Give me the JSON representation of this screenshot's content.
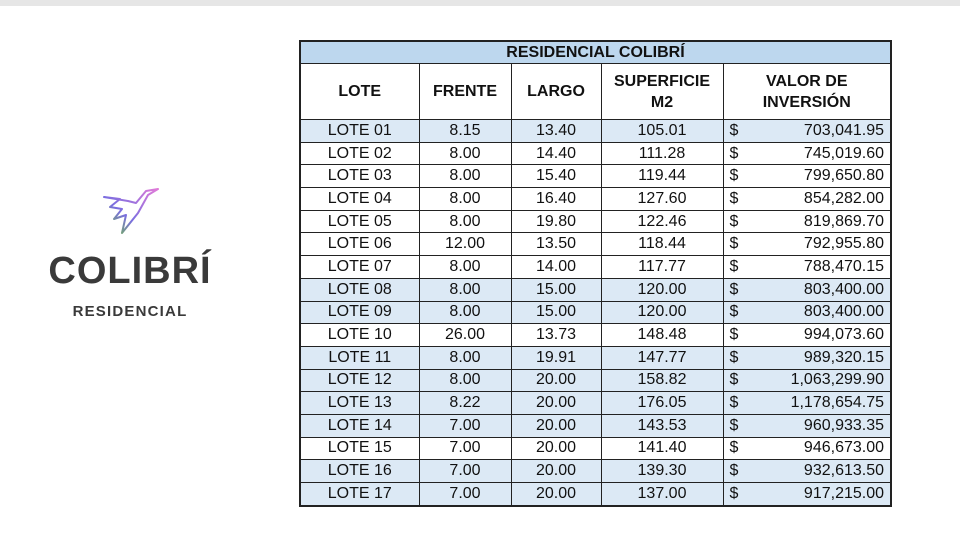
{
  "logo": {
    "brand": "COLIBRÍ",
    "subtitle": "RESIDENCIAL",
    "icon": "hummingbird-icon"
  },
  "table": {
    "title": "RESIDENCIAL COLIBRÍ",
    "headers": [
      "LOTE",
      "FRENTE",
      "LARGO",
      "SUPERFICIE M2",
      "VALOR DE INVERSIÓN"
    ],
    "currency": "$",
    "highlight_color": "#dce9f5",
    "title_color": "#bdd7ee",
    "rows": [
      {
        "lote": "LOTE 01",
        "frente": "8.15",
        "largo": "13.40",
        "superficie": "105.01",
        "valor": "703,041.95",
        "highlight": true
      },
      {
        "lote": "LOTE 02",
        "frente": "8.00",
        "largo": "14.40",
        "superficie": "111.28",
        "valor": "745,019.60",
        "highlight": false
      },
      {
        "lote": "LOTE 03",
        "frente": "8.00",
        "largo": "15.40",
        "superficie": "119.44",
        "valor": "799,650.80",
        "highlight": false
      },
      {
        "lote": "LOTE 04",
        "frente": "8.00",
        "largo": "16.40",
        "superficie": "127.60",
        "valor": "854,282.00",
        "highlight": false
      },
      {
        "lote": "LOTE 05",
        "frente": "8.00",
        "largo": "19.80",
        "superficie": "122.46",
        "valor": "819,869.70",
        "highlight": false
      },
      {
        "lote": "LOTE 06",
        "frente": "12.00",
        "largo": "13.50",
        "superficie": "118.44",
        "valor": "792,955.80",
        "highlight": false
      },
      {
        "lote": "LOTE 07",
        "frente": "8.00",
        "largo": "14.00",
        "superficie": "117.77",
        "valor": "788,470.15",
        "highlight": false
      },
      {
        "lote": "LOTE 08",
        "frente": "8.00",
        "largo": "15.00",
        "superficie": "120.00",
        "valor": "803,400.00",
        "highlight": true
      },
      {
        "lote": "LOTE 09",
        "frente": "8.00",
        "largo": "15.00",
        "superficie": "120.00",
        "valor": "803,400.00",
        "highlight": true
      },
      {
        "lote": "LOTE 10",
        "frente": "26.00",
        "largo": "13.73",
        "superficie": "148.48",
        "valor": "994,073.60",
        "highlight": false
      },
      {
        "lote": "LOTE 11",
        "frente": "8.00",
        "largo": "19.91",
        "superficie": "147.77",
        "valor": "989,320.15",
        "highlight": true
      },
      {
        "lote": "LOTE 12",
        "frente": "8.00",
        "largo": "20.00",
        "superficie": "158.82",
        "valor": "1,063,299.90",
        "highlight": true
      },
      {
        "lote": "LOTE 13",
        "frente": "8.22",
        "largo": "20.00",
        "superficie": "176.05",
        "valor": "1,178,654.75",
        "highlight": true
      },
      {
        "lote": "LOTE 14",
        "frente": "7.00",
        "largo": "20.00",
        "superficie": "143.53",
        "valor": "960,933.35",
        "highlight": true
      },
      {
        "lote": "LOTE 15",
        "frente": "7.00",
        "largo": "20.00",
        "superficie": "141.40",
        "valor": "946,673.00",
        "highlight": false
      },
      {
        "lote": "LOTE 16",
        "frente": "7.00",
        "largo": "20.00",
        "superficie": "139.30",
        "valor": "932,613.50",
        "highlight": true
      },
      {
        "lote": "LOTE 17",
        "frente": "7.00",
        "largo": "20.00",
        "superficie": "137.00",
        "valor": "917,215.00",
        "highlight": true
      }
    ]
  }
}
